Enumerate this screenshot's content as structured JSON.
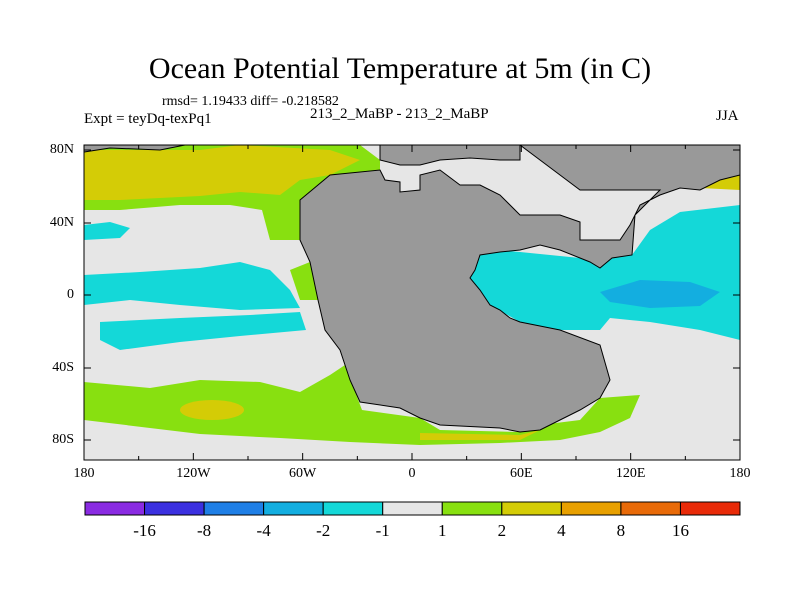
{
  "header": {
    "title": "Ocean Potential Temperature at 5m (in C)",
    "stats": "rmsd= 1.19433 diff= -0.218582",
    "experiment": "Expt = teyDq-texPq1",
    "subtitle": "213_2_MaBP - 213_2_MaBP",
    "season": "JJA"
  },
  "axes": {
    "y_ticks": [
      "80N",
      "40N",
      "0",
      "40S",
      "80S"
    ],
    "x_ticks": [
      "180",
      "120W",
      "60W",
      "0",
      "60E",
      "120E",
      "180"
    ]
  },
  "colorbar": {
    "labels": [
      "-16",
      "-8",
      "-4",
      "-2",
      "-1",
      "1",
      "2",
      "4",
      "8",
      "16"
    ],
    "colors": [
      "#8a2be2",
      "#3b30e0",
      "#1f7fe6",
      "#13aee0",
      "#14d8d8",
      "#e6e6e6",
      "#88e010",
      "#d4cc06",
      "#e8a000",
      "#e86a08",
      "#e82a08"
    ]
  },
  "map_colors": {
    "land": "#999999",
    "near_zero": "#e6e6e6",
    "warm_1_2": "#88e010",
    "warm_2_4": "#d4cc06",
    "cool_1_2": "#14d8d8",
    "cool_2_4": "#13aee0"
  }
}
